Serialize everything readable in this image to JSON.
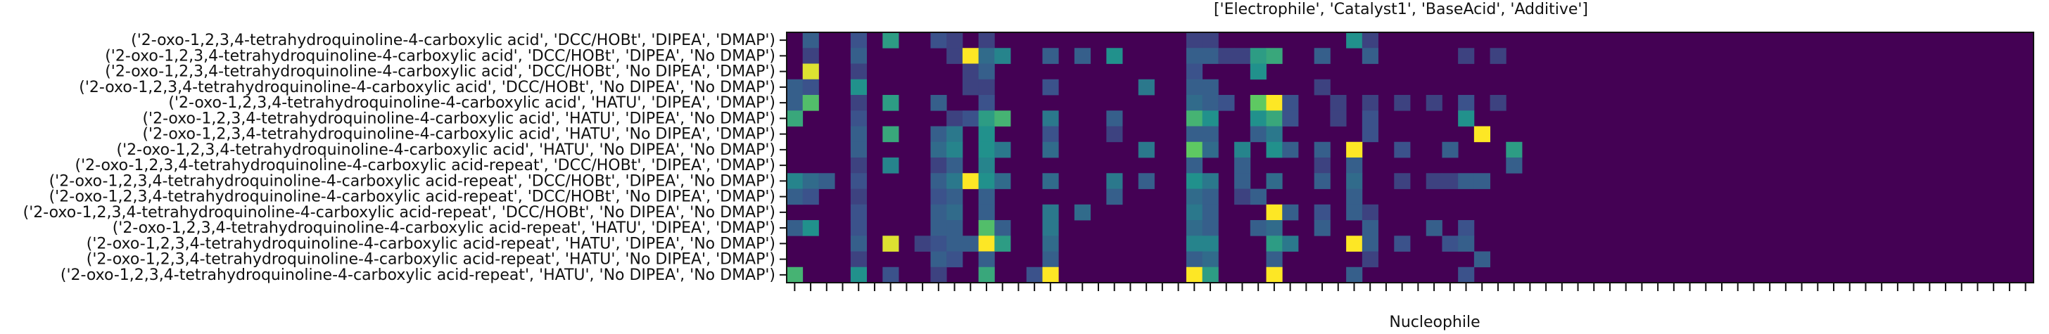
{
  "chart_data": {
    "type": "heatmap",
    "title": "['Electrophile', 'Catalyst1', 'BaseAcid', 'Additive']",
    "xlabel": "Nucleophile",
    "ylabel": "",
    "colormap": "viridis",
    "color_range": [
      0,
      1
    ],
    "n_columns": 78,
    "rows": [
      "('2-oxo-1,2,3,4-tetrahydroquinoline-4-carboxylic acid', 'DCC/HOBt', 'DIPEA', 'DMAP')",
      "('2-oxo-1,2,3,4-tetrahydroquinoline-4-carboxylic acid', 'DCC/HOBt', 'DIPEA', 'No DMAP')",
      "('2-oxo-1,2,3,4-tetrahydroquinoline-4-carboxylic acid', 'DCC/HOBt', 'No DIPEA', 'DMAP')",
      "('2-oxo-1,2,3,4-tetrahydroquinoline-4-carboxylic acid', 'DCC/HOBt', 'No DIPEA', 'No DMAP')",
      "('2-oxo-1,2,3,4-tetrahydroquinoline-4-carboxylic acid', 'HATU', 'DIPEA', 'DMAP')",
      "('2-oxo-1,2,3,4-tetrahydroquinoline-4-carboxylic acid', 'HATU', 'DIPEA', 'No DMAP')",
      "('2-oxo-1,2,3,4-tetrahydroquinoline-4-carboxylic acid', 'HATU', 'No DIPEA', 'DMAP')",
      "('2-oxo-1,2,3,4-tetrahydroquinoline-4-carboxylic acid', 'HATU', 'No DIPEA', 'No DMAP')",
      "('2-oxo-1,2,3,4-tetrahydroquinoline-4-carboxylic acid-repeat', 'DCC/HOBt', 'DIPEA', 'DMAP')",
      "('2-oxo-1,2,3,4-tetrahydroquinoline-4-carboxylic acid-repeat', 'DCC/HOBt', 'DIPEA', 'No DMAP')",
      "('2-oxo-1,2,3,4-tetrahydroquinoline-4-carboxylic acid-repeat', 'DCC/HOBt', 'No DIPEA', 'DMAP')",
      "('2-oxo-1,2,3,4-tetrahydroquinoline-4-carboxylic acid-repeat', 'DCC/HOBt', 'No DIPEA', 'No DMAP')",
      "('2-oxo-1,2,3,4-tetrahydroquinoline-4-carboxylic acid-repeat', 'HATU', 'DIPEA', 'DMAP')",
      "('2-oxo-1,2,3,4-tetrahydroquinoline-4-carboxylic acid-repeat', 'HATU', 'DIPEA', 'No DMAP')",
      "('2-oxo-1,2,3,4-tetrahydroquinoline-4-carboxylic acid-repeat', 'HATU', 'No DIPEA', 'DMAP')",
      "('2-oxo-1,2,3,4-tetrahydroquinoline-4-carboxylic acid-repeat', 'HATU', 'No DIPEA', 'No DMAP')"
    ],
    "cells": [
      [
        0,
        1,
        0.3
      ],
      [
        0,
        4,
        0.25
      ],
      [
        0,
        6,
        0.55
      ],
      [
        0,
        9,
        0.25
      ],
      [
        0,
        10,
        0.2
      ],
      [
        0,
        12,
        0.2
      ],
      [
        0,
        25,
        0.2
      ],
      [
        0,
        26,
        0.2
      ],
      [
        0,
        35,
        0.5
      ],
      [
        0,
        36,
        0.2
      ],
      [
        1,
        1,
        0.2
      ],
      [
        1,
        4,
        0.3
      ],
      [
        1,
        10,
        0.2
      ],
      [
        1,
        11,
        1.0
      ],
      [
        1,
        12,
        0.35
      ],
      [
        1,
        13,
        0.45
      ],
      [
        1,
        16,
        0.3
      ],
      [
        1,
        18,
        0.3
      ],
      [
        1,
        20,
        0.5
      ],
      [
        1,
        25,
        0.3
      ],
      [
        1,
        26,
        0.3
      ],
      [
        1,
        27,
        0.2
      ],
      [
        1,
        28,
        0.2
      ],
      [
        1,
        29,
        0.55
      ],
      [
        1,
        30,
        0.6
      ],
      [
        1,
        33,
        0.3
      ],
      [
        1,
        36,
        0.3
      ],
      [
        1,
        42,
        0.2
      ],
      [
        1,
        44,
        0.2
      ],
      [
        2,
        1,
        0.95
      ],
      [
        2,
        4,
        0.2
      ],
      [
        2,
        11,
        0.2
      ],
      [
        2,
        12,
        0.3
      ],
      [
        2,
        25,
        0.25
      ],
      [
        2,
        29,
        0.5
      ],
      [
        3,
        0,
        0.3
      ],
      [
        3,
        1,
        0.25
      ],
      [
        3,
        4,
        0.5
      ],
      [
        3,
        11,
        0.2
      ],
      [
        3,
        12,
        0.2
      ],
      [
        3,
        16,
        0.25
      ],
      [
        3,
        22,
        0.4
      ],
      [
        3,
        25,
        0.3
      ],
      [
        3,
        26,
        0.3
      ],
      [
        3,
        33,
        0.2
      ],
      [
        4,
        0,
        0.3
      ],
      [
        4,
        1,
        0.7
      ],
      [
        4,
        4,
        0.2
      ],
      [
        4,
        6,
        0.55
      ],
      [
        4,
        9,
        0.3
      ],
      [
        4,
        12,
        0.25
      ],
      [
        4,
        25,
        0.35
      ],
      [
        4,
        26,
        0.3
      ],
      [
        4,
        27,
        0.25
      ],
      [
        4,
        29,
        0.75
      ],
      [
        4,
        30,
        1.0
      ],
      [
        4,
        31,
        0.25
      ],
      [
        4,
        34,
        0.2
      ],
      [
        4,
        36,
        0.2
      ],
      [
        4,
        38,
        0.2
      ],
      [
        4,
        40,
        0.2
      ],
      [
        4,
        42,
        0.25
      ],
      [
        4,
        44,
        0.2
      ],
      [
        5,
        0,
        0.6
      ],
      [
        5,
        4,
        0.25
      ],
      [
        5,
        10,
        0.2
      ],
      [
        5,
        11,
        0.25
      ],
      [
        5,
        12,
        0.55
      ],
      [
        5,
        13,
        0.65
      ],
      [
        5,
        16,
        0.4
      ],
      [
        5,
        20,
        0.3
      ],
      [
        5,
        25,
        0.65
      ],
      [
        5,
        26,
        0.5
      ],
      [
        5,
        29,
        0.5
      ],
      [
        5,
        30,
        0.6
      ],
      [
        5,
        31,
        0.25
      ],
      [
        5,
        34,
        0.2
      ],
      [
        5,
        36,
        0.25
      ],
      [
        5,
        42,
        0.5
      ],
      [
        6,
        4,
        0.3
      ],
      [
        6,
        6,
        0.6
      ],
      [
        6,
        9,
        0.3
      ],
      [
        6,
        10,
        0.4
      ],
      [
        6,
        12,
        0.5
      ],
      [
        6,
        16,
        0.25
      ],
      [
        6,
        20,
        0.2
      ],
      [
        6,
        25,
        0.3
      ],
      [
        6,
        26,
        0.3
      ],
      [
        6,
        29,
        0.3
      ],
      [
        6,
        30,
        0.4
      ],
      [
        6,
        36,
        0.25
      ],
      [
        6,
        43,
        1.0
      ],
      [
        7,
        4,
        0.3
      ],
      [
        7,
        9,
        0.35
      ],
      [
        7,
        10,
        0.45
      ],
      [
        7,
        12,
        0.5
      ],
      [
        7,
        13,
        0.4
      ],
      [
        7,
        16,
        0.35
      ],
      [
        7,
        22,
        0.4
      ],
      [
        7,
        25,
        0.75
      ],
      [
        7,
        26,
        0.35
      ],
      [
        7,
        28,
        0.45
      ],
      [
        7,
        30,
        0.5
      ],
      [
        7,
        31,
        0.3
      ],
      [
        7,
        33,
        0.3
      ],
      [
        7,
        35,
        1.0
      ],
      [
        7,
        38,
        0.25
      ],
      [
        7,
        41,
        0.3
      ],
      [
        7,
        45,
        0.55
      ],
      [
        8,
        4,
        0.2
      ],
      [
        8,
        6,
        0.45
      ],
      [
        8,
        9,
        0.2
      ],
      [
        8,
        10,
        0.3
      ],
      [
        8,
        12,
        0.45
      ],
      [
        8,
        25,
        0.3
      ],
      [
        8,
        28,
        0.3
      ],
      [
        8,
        33,
        0.2
      ],
      [
        8,
        35,
        0.3
      ],
      [
        8,
        45,
        0.3
      ],
      [
        9,
        0,
        0.45
      ],
      [
        9,
        1,
        0.35
      ],
      [
        9,
        2,
        0.3
      ],
      [
        9,
        4,
        0.25
      ],
      [
        9,
        9,
        0.3
      ],
      [
        9,
        10,
        0.4
      ],
      [
        9,
        11,
        1.0
      ],
      [
        9,
        12,
        0.5
      ],
      [
        9,
        13,
        0.35
      ],
      [
        9,
        16,
        0.35
      ],
      [
        9,
        20,
        0.4
      ],
      [
        9,
        22,
        0.3
      ],
      [
        9,
        25,
        0.5
      ],
      [
        9,
        26,
        0.4
      ],
      [
        9,
        28,
        0.3
      ],
      [
        9,
        30,
        0.35
      ],
      [
        9,
        33,
        0.3
      ],
      [
        9,
        35,
        0.35
      ],
      [
        9,
        38,
        0.2
      ],
      [
        9,
        40,
        0.2
      ],
      [
        9,
        41,
        0.2
      ],
      [
        9,
        42,
        0.3
      ],
      [
        9,
        43,
        0.3
      ],
      [
        10,
        0,
        0.3
      ],
      [
        10,
        1,
        0.25
      ],
      [
        10,
        4,
        0.2
      ],
      [
        10,
        9,
        0.25
      ],
      [
        10,
        10,
        0.3
      ],
      [
        10,
        12,
        0.3
      ],
      [
        10,
        20,
        0.3
      ],
      [
        10,
        25,
        0.35
      ],
      [
        10,
        26,
        0.3
      ],
      [
        10,
        28,
        0.2
      ],
      [
        10,
        29,
        0.3
      ],
      [
        10,
        35,
        0.3
      ],
      [
        11,
        4,
        0.25
      ],
      [
        11,
        9,
        0.3
      ],
      [
        11,
        10,
        0.35
      ],
      [
        11,
        12,
        0.3
      ],
      [
        11,
        16,
        0.4
      ],
      [
        11,
        18,
        0.35
      ],
      [
        11,
        25,
        0.4
      ],
      [
        11,
        26,
        0.3
      ],
      [
        11,
        30,
        1.0
      ],
      [
        11,
        31,
        0.3
      ],
      [
        11,
        33,
        0.25
      ],
      [
        11,
        35,
        0.3
      ],
      [
        11,
        36,
        0.2
      ],
      [
        12,
        0,
        0.3
      ],
      [
        12,
        1,
        0.5
      ],
      [
        12,
        4,
        0.25
      ],
      [
        12,
        9,
        0.3
      ],
      [
        12,
        10,
        0.3
      ],
      [
        12,
        12,
        0.7
      ],
      [
        12,
        13,
        0.3
      ],
      [
        12,
        16,
        0.4
      ],
      [
        12,
        25,
        0.35
      ],
      [
        12,
        26,
        0.3
      ],
      [
        12,
        29,
        0.3
      ],
      [
        12,
        30,
        0.35
      ],
      [
        12,
        33,
        0.3
      ],
      [
        12,
        36,
        0.3
      ],
      [
        12,
        40,
        0.3
      ],
      [
        12,
        42,
        0.25
      ],
      [
        13,
        4,
        0.3
      ],
      [
        13,
        6,
        0.95
      ],
      [
        13,
        8,
        0.2
      ],
      [
        13,
        9,
        0.25
      ],
      [
        13,
        10,
        0.3
      ],
      [
        13,
        11,
        0.3
      ],
      [
        13,
        12,
        1.0
      ],
      [
        13,
        13,
        0.55
      ],
      [
        13,
        16,
        0.35
      ],
      [
        13,
        25,
        0.45
      ],
      [
        13,
        26,
        0.45
      ],
      [
        13,
        30,
        0.55
      ],
      [
        13,
        31,
        0.4
      ],
      [
        13,
        35,
        1.0
      ],
      [
        13,
        36,
        0.3
      ],
      [
        13,
        38,
        0.25
      ],
      [
        13,
        41,
        0.25
      ],
      [
        13,
        42,
        0.3
      ],
      [
        14,
        4,
        0.2
      ],
      [
        14,
        9,
        0.3
      ],
      [
        14,
        10,
        0.25
      ],
      [
        14,
        12,
        0.3
      ],
      [
        14,
        16,
        0.3
      ],
      [
        14,
        25,
        0.3
      ],
      [
        14,
        26,
        0.35
      ],
      [
        14,
        30,
        0.3
      ],
      [
        14,
        36,
        0.2
      ],
      [
        14,
        43,
        0.3
      ],
      [
        15,
        0,
        0.65
      ],
      [
        15,
        4,
        0.5
      ],
      [
        15,
        6,
        0.25
      ],
      [
        15,
        9,
        0.2
      ],
      [
        15,
        12,
        0.6
      ],
      [
        15,
        15,
        0.25
      ],
      [
        15,
        16,
        1.0
      ],
      [
        15,
        25,
        1.0
      ],
      [
        15,
        26,
        0.55
      ],
      [
        15,
        30,
        1.0
      ],
      [
        15,
        35,
        0.3
      ],
      [
        15,
        42,
        0.25
      ]
    ]
  }
}
